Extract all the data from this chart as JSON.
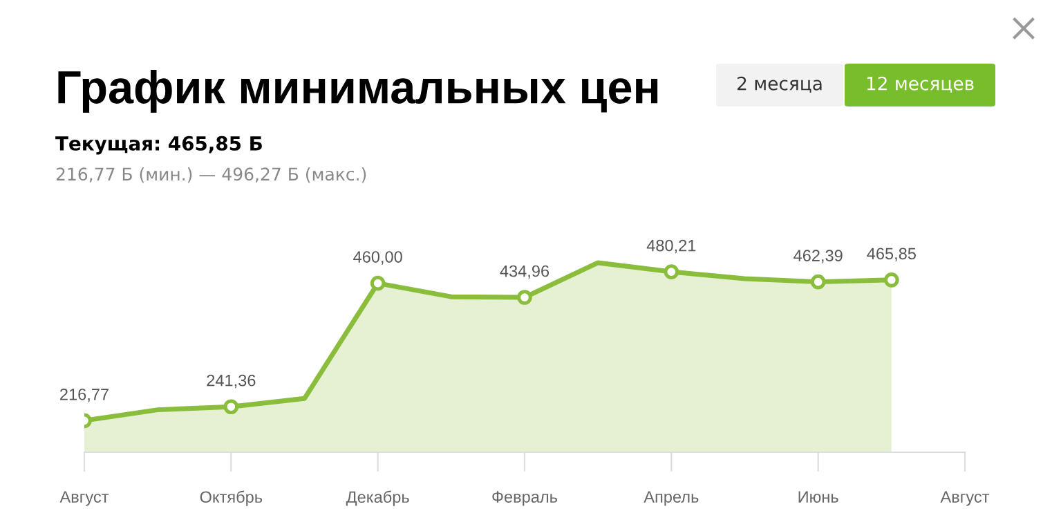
{
  "chart_data": {
    "type": "area",
    "title": "График минимальных цен",
    "subtitle": "Текущая: 465,85 Б",
    "annotations": [
      "216,77 Б (мин.) — 496,27 Б (макс.)",
      "2 месяца",
      "12 месяцев"
    ],
    "categories": [
      "Август",
      null,
      "Октябрь",
      null,
      "Декабрь",
      null,
      "Февраль",
      null,
      "Апрель",
      null,
      "Июнь",
      null,
      "Август"
    ],
    "series": [
      {
        "color": "#8bbd3c",
        "values": [
          216.77,
          236,
          241.36,
          256,
          460.0,
          436,
          434.96,
          496.27,
          480.21,
          468,
          462.39,
          465.85,
          null
        ],
        "value_labels": [
          "216,77",
          null,
          "241,36",
          null,
          "460,00",
          null,
          "434,96",
          null,
          "480,21",
          null,
          "462,39",
          "465,85",
          null
        ]
      }
    ],
    "tick_labels": "x",
    "marker": "circle"
  }
}
